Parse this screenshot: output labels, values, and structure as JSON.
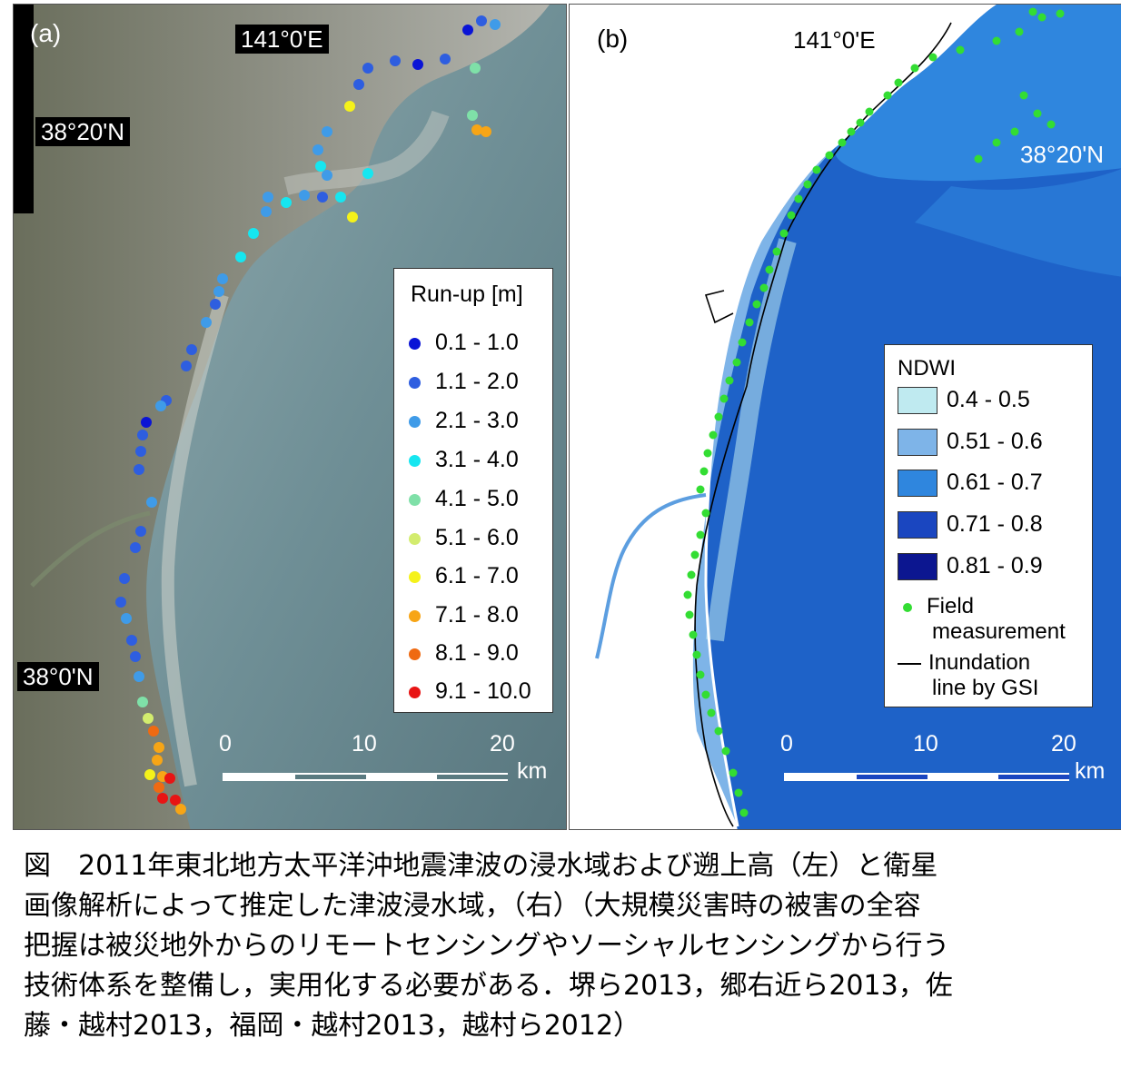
{
  "figure": {
    "panel_a": {
      "label": "(a)",
      "coord_top": "141°0'E",
      "coord_lat_upper": "38°20'N",
      "coord_lat_lower": "38°0'N",
      "legend": {
        "title": "Run-up [m]",
        "items": [
          {
            "label": "0.1 - 1.0",
            "color": "#0a14d6"
          },
          {
            "label": "1.1 - 2.0",
            "color": "#2e5ee0"
          },
          {
            "label": "2.1 - 3.0",
            "color": "#3f9be8"
          },
          {
            "label": "3.1 - 4.0",
            "color": "#16e6f0"
          },
          {
            "label": "4.1 - 5.0",
            "color": "#7fe0a8"
          },
          {
            "label": "5.1 - 6.0",
            "color": "#d3ec6e"
          },
          {
            "label": "6.1 - 7.0",
            "color": "#f5f21a"
          },
          {
            "label": "7.1 - 8.0",
            "color": "#f7a516"
          },
          {
            "label": "8.1 - 9.0",
            "color": "#ef6a12"
          },
          {
            "label": "9.1 - 10.0",
            "color": "#e81414"
          }
        ]
      },
      "scale": {
        "ticks": [
          "0",
          "10",
          "20"
        ],
        "unit": "km"
      }
    },
    "panel_b": {
      "label": "(b)",
      "coord_top": "141°0'E",
      "coord_lat": "38°20'N",
      "legend": {
        "title": "NDWI",
        "items": [
          {
            "label": "0.4 - 0.5",
            "color": "#bfeaf0"
          },
          {
            "label": "0.51 - 0.6",
            "color": "#7eb4e8"
          },
          {
            "label": "0.61 - 0.7",
            "color": "#2f86de"
          },
          {
            "label": "0.71 - 0.8",
            "color": "#1a46c0"
          },
          {
            "label": "0.81 - 0.9",
            "color": "#0c1690"
          }
        ],
        "field_measurement": [
          "Field",
          "measurement"
        ],
        "inundation_line": [
          "Inundation",
          "line by GSI"
        ]
      },
      "scale": {
        "ticks": [
          "0",
          "10",
          "20"
        ],
        "unit": "km"
      }
    }
  },
  "caption": {
    "lines": [
      "図　2011年東北地方太平洋沖地震津波の浸水域および遡上高（左）と衛星",
      "画像解析によって推定した津波浸水域，（右）（大規模災害時の被害の全容",
      "把握は被災地外からのリモートセンシングやソーシャルセンシングから行う",
      "技術体系を整備し，実用化する必要がある．堺ら2013，郷右近ら2013，佐",
      "藤・越村2013，福岡・越村2013，越村ら2012）"
    ]
  }
}
